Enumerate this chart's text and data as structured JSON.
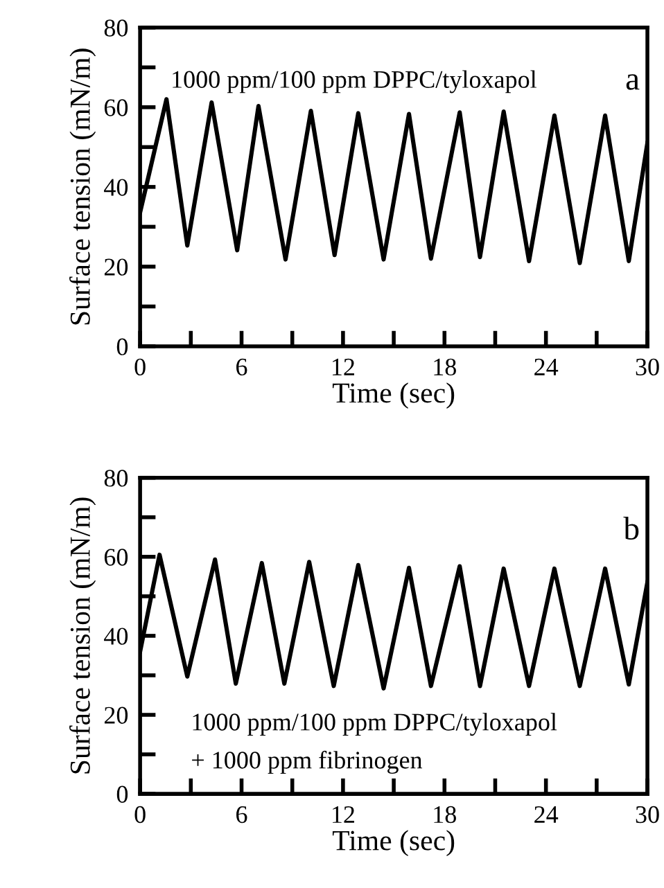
{
  "chart_data": [
    {
      "type": "line",
      "xlabel": "Time (sec)",
      "ylabel": "Surface tension (mN/m)",
      "annotations": [
        "1000 ppm/100 ppm DPPC/tyloxapol",
        "a"
      ],
      "series": [
        {
          "color": "#000000",
          "x": [
            0,
            1.56,
            2.79,
            4.23,
            5.74,
            7.0,
            8.6,
            10.1,
            11.5,
            12.9,
            14.4,
            15.9,
            17.2,
            18.9,
            20.1,
            21.5,
            23.0,
            24.5,
            26.0,
            27.5,
            28.9,
            30
          ],
          "values": [
            33.6,
            62,
            25.3,
            61.2,
            24.1,
            60.3,
            21.8,
            59.1,
            22.9,
            58.5,
            21.8,
            58.3,
            22.0,
            58.7,
            22.4,
            58.9,
            21.4,
            57.9,
            20.9,
            57.9,
            21.4,
            51
          ]
        }
      ],
      "xlim": [
        0,
        30
      ],
      "ylim": [
        0,
        80
      ],
      "xticks": [
        0,
        {
          "value": 3,
          "label": null
        },
        6,
        {
          "value": 9,
          "label": null
        },
        12,
        {
          "value": 15,
          "label": null
        },
        18,
        {
          "value": 21,
          "label": null
        },
        24,
        {
          "value": 27,
          "label": null
        },
        30
      ],
      "yticks": [
        0,
        {
          "value": 10,
          "label": null
        },
        20,
        {
          "value": 30,
          "label": null
        },
        40,
        {
          "value": 50,
          "label": null
        },
        60,
        {
          "value": 70,
          "label": null
        },
        80
      ],
      "grid": false,
      "legend": false,
      "marker": "none",
      "line_style": "solid"
    },
    {
      "type": "line",
      "xlabel": "Time (sec)",
      "ylabel": "Surface tension (mN/m)",
      "annotations": [
        "1000 ppm/100 ppm DPPC/tyloxapol",
        "+ 1000 ppm fibrinogen",
        "b"
      ],
      "series": [
        {
          "color": "#000000",
          "x": [
            0,
            1.15,
            2.79,
            4.43,
            5.66,
            7.2,
            8.53,
            10.0,
            11.45,
            12.9,
            14.4,
            15.9,
            17.2,
            18.9,
            20.1,
            21.5,
            23.0,
            24.5,
            26.0,
            27.5,
            28.9,
            30
          ],
          "values": [
            36,
            60.5,
            29.7,
            59.3,
            27.9,
            58.4,
            27.9,
            58.7,
            27.3,
            57.9,
            26.7,
            57.2,
            27.3,
            57.6,
            27.3,
            57.0,
            27.3,
            57.0,
            27.3,
            57.0,
            27.7,
            53.5
          ]
        }
      ],
      "xlim": [
        0,
        30
      ],
      "ylim": [
        0,
        80
      ],
      "xticks": [
        0,
        {
          "value": 3,
          "label": null
        },
        6,
        {
          "value": 9,
          "label": null
        },
        12,
        {
          "value": 15,
          "label": null
        },
        18,
        {
          "value": 21,
          "label": null
        },
        24,
        {
          "value": 27,
          "label": null
        },
        30
      ],
      "yticks": [
        0,
        {
          "value": 10,
          "label": null
        },
        20,
        {
          "value": 30,
          "label": null
        },
        40,
        {
          "value": 50,
          "label": null
        },
        60,
        {
          "value": 70,
          "label": null
        },
        80
      ],
      "grid": false,
      "legend": false,
      "marker": "none",
      "line_style": "solid"
    }
  ]
}
